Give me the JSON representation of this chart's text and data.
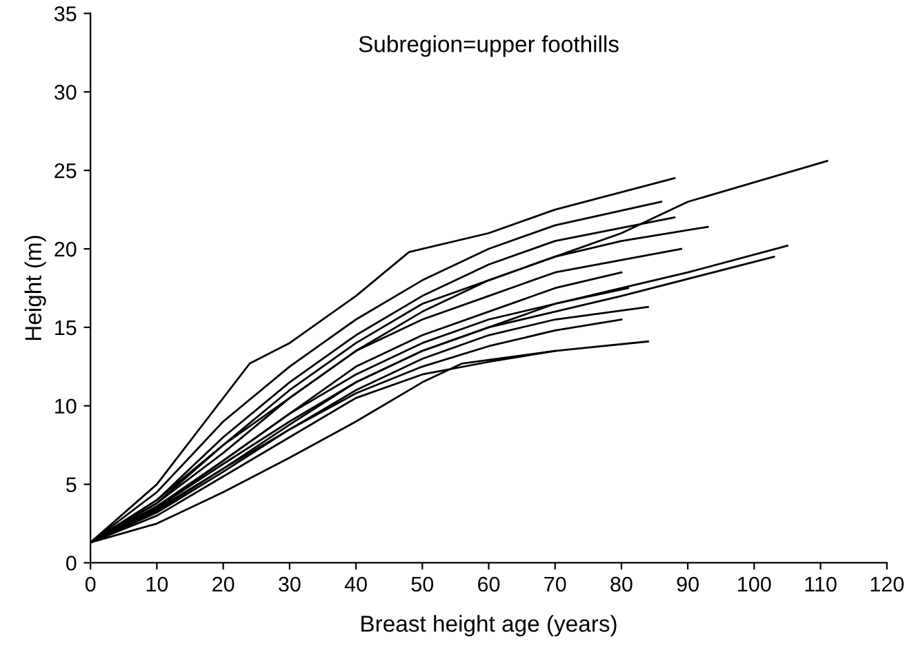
{
  "chart_data": {
    "type": "line",
    "title": "Subregion=upper foothills",
    "xlabel": "Breast height age (years)",
    "ylabel": "Height (m)",
    "xlim": [
      0,
      120
    ],
    "ylim": [
      0,
      35
    ],
    "xticks": [
      0,
      10,
      20,
      30,
      40,
      50,
      60,
      70,
      80,
      90,
      100,
      110,
      120
    ],
    "yticks": [
      0,
      5,
      10,
      15,
      20,
      25,
      30,
      35
    ],
    "grid": false,
    "legend": false,
    "marker": "none",
    "line_style": "solid",
    "series": [
      {
        "color": "#000000",
        "x": [
          0,
          10,
          24,
          30,
          40,
          48,
          60,
          70,
          88
        ],
        "values": [
          1.3,
          5,
          12.7,
          14,
          17,
          19.8,
          21,
          22.5,
          24.5
        ]
      },
      {
        "color": "#000000",
        "x": [
          0,
          10,
          20,
          30,
          40,
          50,
          60,
          70,
          86
        ],
        "values": [
          1.3,
          4.5,
          9,
          12.5,
          15.5,
          18,
          20,
          21.5,
          23
        ]
      },
      {
        "color": "#000000",
        "x": [
          0,
          10,
          20,
          30,
          40,
          50,
          60,
          70,
          88
        ],
        "values": [
          1.3,
          4,
          8,
          11.5,
          14.5,
          17,
          19,
          20.5,
          22
        ]
      },
      {
        "color": "#000000",
        "x": [
          0,
          10,
          20,
          30,
          40,
          50,
          60,
          70,
          80,
          93
        ],
        "values": [
          1.3,
          3.8,
          7.5,
          11,
          14,
          16.5,
          18,
          19.5,
          20.5,
          21.4
        ]
      },
      {
        "color": "#000000",
        "x": [
          0,
          10,
          20,
          30,
          40,
          50,
          60,
          70,
          89
        ],
        "values": [
          1.3,
          3.8,
          7,
          10.5,
          13.5,
          15.5,
          17,
          18.5,
          20
        ]
      },
      {
        "color": "#000000",
        "x": [
          0,
          10,
          20,
          30,
          40,
          50,
          60,
          70,
          80,
          90,
          111
        ],
        "values": [
          1.3,
          4,
          7.5,
          10.5,
          13.5,
          16,
          18,
          19.5,
          21,
          23,
          25.6
        ]
      },
      {
        "color": "#000000",
        "x": [
          0,
          10,
          20,
          30,
          40,
          50,
          60,
          70,
          80,
          90,
          105
        ],
        "values": [
          1.3,
          3.5,
          6.5,
          9.5,
          12,
          14,
          15.5,
          16.5,
          17.5,
          18.5,
          20.2
        ]
      },
      {
        "color": "#000000",
        "x": [
          0,
          10,
          20,
          30,
          40,
          50,
          60,
          70,
          80,
          103
        ],
        "values": [
          1.3,
          3.5,
          6.3,
          9,
          11.5,
          13.5,
          15,
          16,
          17,
          19.5
        ]
      },
      {
        "color": "#000000",
        "x": [
          0,
          10,
          20,
          30,
          40,
          50,
          60,
          70,
          80
        ],
        "values": [
          1.3,
          3.6,
          6.5,
          9.5,
          12.5,
          14.5,
          16,
          17.5,
          18.5
        ]
      },
      {
        "color": "#000000",
        "x": [
          0,
          10,
          20,
          30,
          40,
          50,
          60,
          70,
          81
        ],
        "values": [
          1.3,
          3.4,
          6,
          8.8,
          11.5,
          13.5,
          15,
          16.5,
          17.5
        ]
      },
      {
        "color": "#000000",
        "x": [
          0,
          10,
          20,
          30,
          40,
          50,
          60,
          70,
          84
        ],
        "values": [
          1.3,
          3.2,
          5.8,
          8.5,
          11,
          13,
          14.5,
          15.5,
          16.3
        ]
      },
      {
        "color": "#000000",
        "x": [
          0,
          10,
          20,
          30,
          40,
          50,
          60,
          70,
          80
        ],
        "values": [
          1.3,
          3.3,
          6,
          8.5,
          10.8,
          12.5,
          13.8,
          14.8,
          15.5
        ]
      },
      {
        "color": "#000000",
        "x": [
          0,
          10,
          20,
          30,
          40,
          50,
          60,
          70,
          84
        ],
        "values": [
          1.3,
          3,
          5.5,
          8,
          10.5,
          12,
          12.8,
          13.5,
          14.1
        ]
      },
      {
        "color": "#000000",
        "x": [
          0,
          10,
          20,
          30,
          40,
          50,
          56,
          70
        ],
        "values": [
          1.3,
          2.5,
          4.5,
          6.7,
          9,
          11.5,
          12.7,
          13.5
        ]
      }
    ]
  }
}
